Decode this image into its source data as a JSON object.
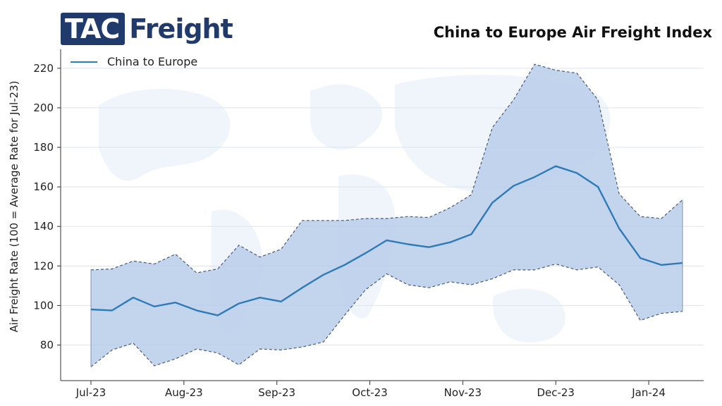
{
  "logo": {
    "box_text": "TAC",
    "text": "Freight"
  },
  "chart_data": {
    "type": "line",
    "title": "China to Europe Air Freight Index",
    "ylabel": "Air Freight Rate (100 = Average Rate for Jul-23)",
    "xlabel": "",
    "ylim": [
      62,
      226
    ],
    "yticks": [
      80,
      100,
      120,
      140,
      160,
      180,
      200,
      220
    ],
    "x_ticks": [
      "Jul-23",
      "Aug-23",
      "Sep-23",
      "Oct-23",
      "Nov-23",
      "Dec-23",
      "Jan-24"
    ],
    "x_tick_index": [
      0,
      4.4,
      8.8,
      13.2,
      17.6,
      22.0,
      26.4
    ],
    "legend_position": "top-left",
    "grid": true,
    "series": [
      {
        "name": "China to Europe",
        "color": "#2f7ab8",
        "values": [
          98,
          97.5,
          104,
          99.5,
          101.5,
          97.5,
          95,
          101,
          104,
          102,
          109,
          115.5,
          120.5,
          126.5,
          133,
          131,
          129.5,
          132,
          136,
          152,
          160.5,
          165,
          170.5,
          167,
          160,
          139,
          124,
          120.5,
          121.5
        ]
      }
    ],
    "band": {
      "color": "#b9cdea",
      "upper": [
        118,
        118.5,
        122.5,
        121,
        126,
        116.5,
        118.5,
        130.5,
        124.5,
        128.5,
        143,
        143,
        143,
        144,
        144,
        145,
        144.5,
        149.5,
        156,
        190,
        204,
        222,
        219,
        217.5,
        204,
        156.5,
        145,
        144,
        153.5
      ],
      "lower": [
        69,
        77.5,
        81,
        69.5,
        73,
        78,
        76,
        70,
        78,
        77.5,
        79,
        81.5,
        95,
        108,
        116,
        110.5,
        109,
        112,
        110.5,
        113.5,
        118,
        118,
        121,
        118,
        119.5,
        110.5,
        92.5,
        96,
        97
      ]
    }
  }
}
